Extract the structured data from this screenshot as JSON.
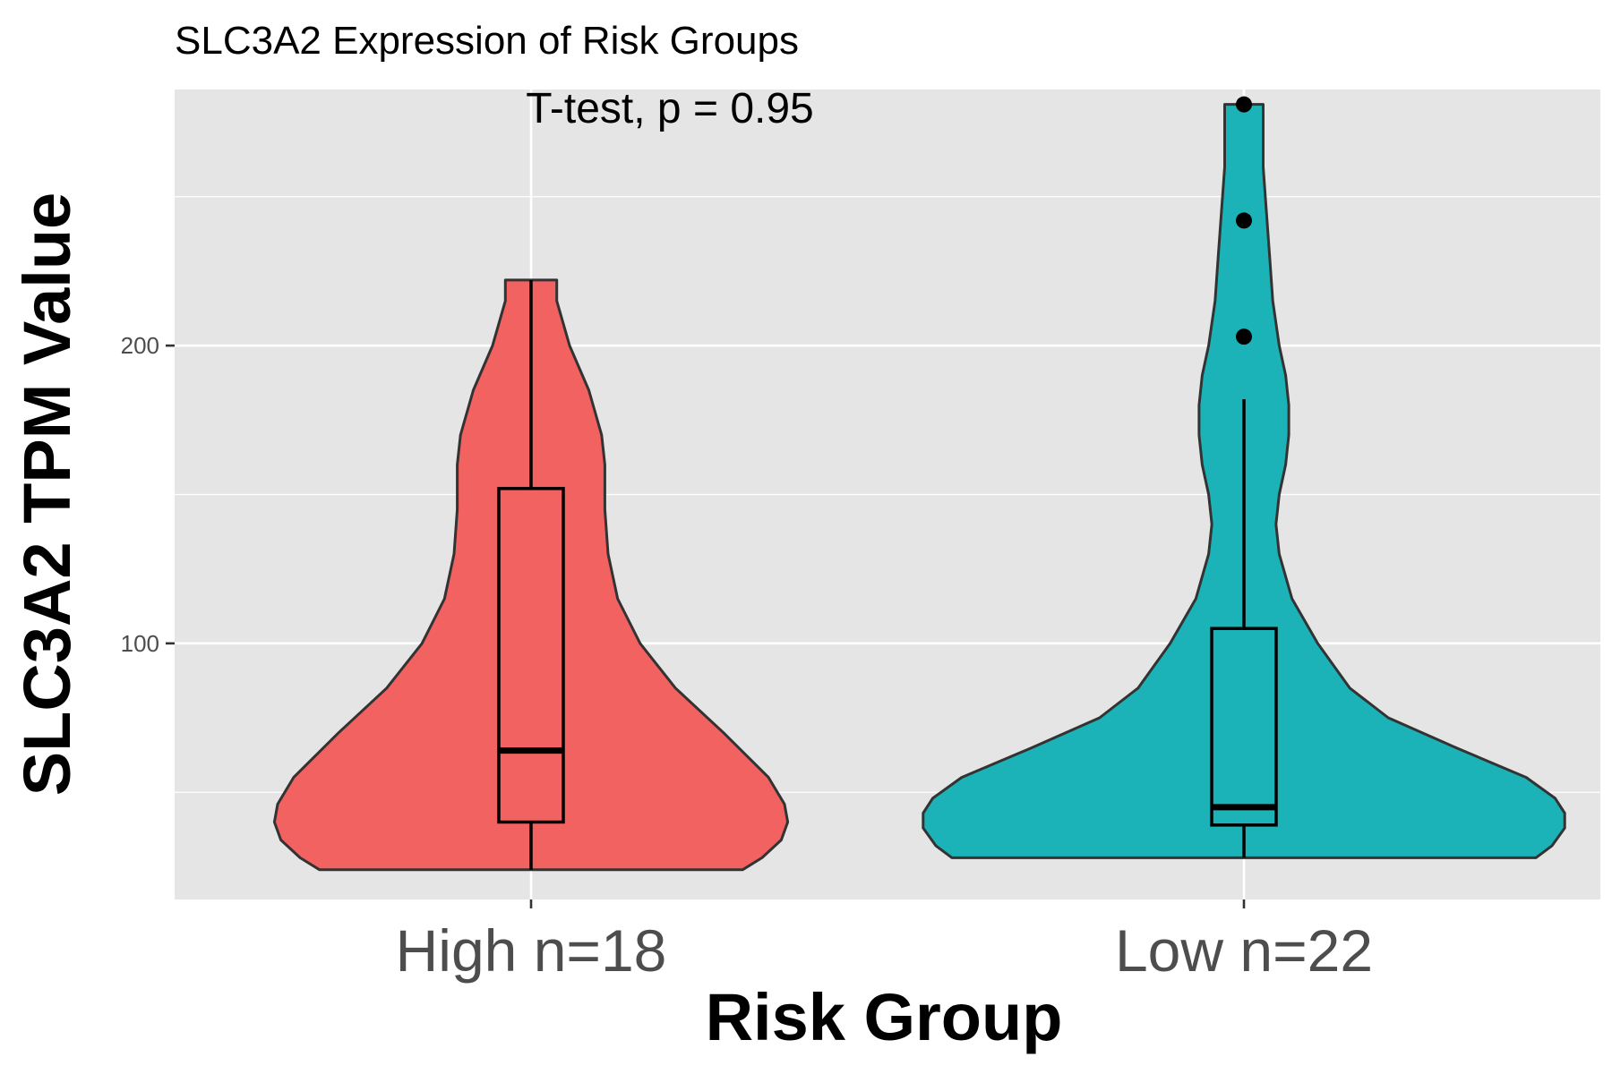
{
  "chart_data": {
    "type": "violin",
    "title": "SLC3A2 Expression of Risk Groups",
    "annotation": "T-test, p = 0.95",
    "xlabel": "Risk Group",
    "ylabel": "SLC3A2 TPM Value",
    "categories": [
      "High n=18",
      "Low n=22"
    ],
    "y_ticks": [
      100,
      200
    ],
    "ylim": [
      14,
      286
    ],
    "grid": true,
    "legend": "none",
    "panel_color": "#e5e5e5",
    "groups": [
      {
        "label": "High n=18",
        "color": "#f26260",
        "min": 24,
        "q1": 40,
        "median": 64,
        "q3": 152,
        "max": 222,
        "outliers": [],
        "density_profile": [
          [
            24,
            0.66
          ],
          [
            28,
            0.72
          ],
          [
            34,
            0.78
          ],
          [
            40,
            0.8
          ],
          [
            46,
            0.79
          ],
          [
            55,
            0.74
          ],
          [
            70,
            0.6
          ],
          [
            85,
            0.45
          ],
          [
            100,
            0.34
          ],
          [
            115,
            0.27
          ],
          [
            130,
            0.24
          ],
          [
            145,
            0.23
          ],
          [
            160,
            0.23
          ],
          [
            170,
            0.22
          ],
          [
            185,
            0.18
          ],
          [
            200,
            0.12
          ],
          [
            215,
            0.08
          ],
          [
            222,
            0.08
          ]
        ]
      },
      {
        "label": "Low n=22",
        "color": "#1bb3b7",
        "min": 28,
        "q1": 39,
        "median": 45,
        "q3": 105,
        "max": 182,
        "outliers": [
          203,
          242,
          281
        ],
        "density_profile": [
          [
            28,
            0.91
          ],
          [
            32,
            0.96
          ],
          [
            38,
            1.0
          ],
          [
            43,
            1.0
          ],
          [
            48,
            0.97
          ],
          [
            55,
            0.88
          ],
          [
            65,
            0.66
          ],
          [
            75,
            0.45
          ],
          [
            85,
            0.33
          ],
          [
            100,
            0.23
          ],
          [
            115,
            0.15
          ],
          [
            130,
            0.11
          ],
          [
            140,
            0.1
          ],
          [
            150,
            0.11
          ],
          [
            160,
            0.13
          ],
          [
            170,
            0.14
          ],
          [
            180,
            0.14
          ],
          [
            190,
            0.13
          ],
          [
            200,
            0.11
          ],
          [
            215,
            0.09
          ],
          [
            230,
            0.08
          ],
          [
            245,
            0.07
          ],
          [
            260,
            0.06
          ],
          [
            275,
            0.06
          ],
          [
            281,
            0.06
          ]
        ]
      }
    ]
  }
}
